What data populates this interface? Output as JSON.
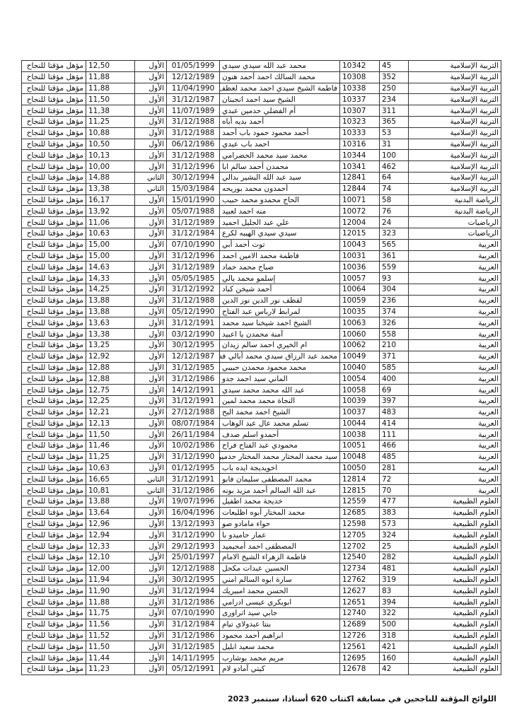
{
  "footer": "اللوائح المؤقتة للناجحين في مسابقة اكتتاب 620 أستاذا، سبتمبر 2023",
  "rows": [
    [
      "التربية الإسلامية",
      "45",
      "10342",
      "محمد عبد الله سيدي سيدي",
      "01/05/1999",
      "الأول",
      "12,50",
      "مؤهل مؤقتا للنجاح"
    ],
    [
      "التربية الإسلامية",
      "352",
      "10308",
      "محمد السالك احمد أحمد هنون",
      "12/12/1989",
      "الأول",
      "11,88",
      "مؤهل مؤقتا للنجاح"
    ],
    [
      "التربية الإسلامية",
      "250",
      "10338",
      "فاطمة الشيخ سيدي احمد محمد لغظف",
      "11/04/1990",
      "الأول",
      "11,88",
      "مؤهل مؤقتا للنجاح"
    ],
    [
      "التربية الإسلامية",
      "234",
      "10337",
      "الشيخ سيد احمد انجبنان",
      "31/12/1987",
      "الأول",
      "11,50",
      "مؤهل مؤقتا للنجاح"
    ],
    [
      "التربية الإسلامية",
      "311",
      "10307",
      "أم الفضلي حدمين عبدي",
      "11/07/1989",
      "الأول",
      "11,38",
      "مؤهل مؤقتا للنجاح"
    ],
    [
      "التربية الإسلامية",
      "365",
      "10323",
      "أحمد بديه أباه",
      "31/12/1988",
      "الأول",
      "11,25",
      "مؤهل مؤقتا للنجاح"
    ],
    [
      "التربية الإسلامية",
      "53",
      "10333",
      "أحمد محمود حمود باب أحمد",
      "31/12/1988",
      "الأول",
      "10,88",
      "مؤهل مؤقتا للنجاح"
    ],
    [
      "التربية الإسلامية",
      "31",
      "10316",
      "احمد باب عبدي",
      "06/12/1986",
      "الأول",
      "10,50",
      "مؤهل مؤقتا للنجاح"
    ],
    [
      "التربية الإسلامية",
      "100",
      "10344",
      "محمد سيد محمد الحضرامي",
      "31/12/1988",
      "الأول",
      "10,13",
      "مؤهل مؤقتا للنجاح"
    ],
    [
      "التربية الإسلامية",
      "462",
      "10341",
      "محمدن أحمد سالم ابا",
      "31/12/1996",
      "الأول",
      "10,00",
      "مؤهل مؤقتا للنجاح"
    ],
    [
      "التربية الإسلامية",
      "64",
      "12841",
      "سيد عبد الله البشير بدالي",
      "30/12/1994",
      "الثاني",
      "14,88",
      "مؤهل مؤقتا للنجاح"
    ],
    [
      "التربية الإسلامية",
      "74",
      "12844",
      "أحمدون محمد بوريحه",
      "15/03/1984",
      "الثاني",
      "13,38",
      "مؤهل مؤقتا للنجاح"
    ],
    [
      "الرياضة البدنية",
      "58",
      "10071",
      "الحاج محمدو محمد حبيب",
      "15/01/1990",
      "الأول",
      "16,17",
      "مؤهل مؤقتا للنجاح"
    ],
    [
      "الرياضة البدنية",
      "76",
      "10072",
      "منه احمد لعبيد",
      "05/07/1988",
      "الأول",
      "13,92",
      "مؤهل مؤقتا للنجاح"
    ],
    [
      "الرياضيات",
      "24",
      "12004",
      "علي عبد الجليل احميد",
      "31/12/1989",
      "الأول",
      "11,06",
      "مؤهل مؤقتا للنجاح"
    ],
    [
      "الرياضيات",
      "323",
      "12015",
      "سيدي سيدي الهيبه لكرع",
      "31/12/1984",
      "الأول",
      "10,63",
      "مؤهل مؤقتا للنجاح"
    ],
    [
      "العربية",
      "565",
      "10043",
      "توت أحمد أبي",
      "07/10/1990",
      "الأول",
      "15,00",
      "مؤهل مؤقتا للنجاح"
    ],
    [
      "العربية",
      "361",
      "10031",
      "فاطمة محمد الامين احمد",
      "31/12/1996",
      "الأول",
      "15,00",
      "مؤهل مؤقتا للنجاح"
    ],
    [
      "العربية",
      "559",
      "10036",
      "صباح محمد حماد",
      "31/12/1989",
      "الأول",
      "14,63",
      "مؤهل مؤقتا للنجاح"
    ],
    [
      "العربية",
      "93",
      "10057",
      "إسلمو محمد يالي",
      "05/05/1985",
      "الأول",
      "14,33",
      "مؤهل مؤقتا للنجاح"
    ],
    [
      "العربية",
      "304",
      "10064",
      "أحمد شيخن كباد",
      "31/12/1992",
      "الأول",
      "14,25",
      "مؤهل مؤقتا للنجاح"
    ],
    [
      "العربية",
      "236",
      "10059",
      "لقظف نور الدين نور الدين",
      "31/12/1988",
      "الأول",
      "13,88",
      "مؤهل مؤقتا للنجاح"
    ],
    [
      "العربية",
      "374",
      "10035",
      "لمرابط لارباس عبد الفتاح",
      "05/12/1990",
      "الأول",
      "13,88",
      "مؤهل مؤقتا للنجاح"
    ],
    [
      "العربية",
      "326",
      "10063",
      "الشيخ احمد شيخنا سيد محمد",
      "31/12/1991",
      "الأول",
      "13,63",
      "مؤهل مؤقتا للنجاح"
    ],
    [
      "العربية",
      "558",
      "10060",
      "آمنة محمدن يا اعبيد",
      "03/12/1990",
      "الأول",
      "13,38",
      "مؤهل مؤقتا للنجاح"
    ],
    [
      "العربية",
      "210",
      "10062",
      "ام الخيري احمد سالم زيدان",
      "30/12/1995",
      "الأول",
      "13,25",
      "مؤهل مؤقتا للنجاح"
    ],
    [
      "العربية",
      "371",
      "10049",
      "محمد عبد الرزاق سيدي محمد  أبالي فضيلي",
      "12/12/1987",
      "الأول",
      "12,92",
      "مؤهل مؤقتا للنجاح"
    ],
    [
      "العربية",
      "585",
      "10040",
      "محمد محمود محمدن حبيبي",
      "31/12/1985",
      "الأول",
      "12,88",
      "مؤهل مؤقتا للنجاح"
    ],
    [
      "العربية",
      "400",
      "10054",
      "الماني سيد احمد جدو",
      "31/12/1986",
      "الأول",
      "12,88",
      "مؤهل مؤقتا للنجاح"
    ],
    [
      "العربية",
      "69",
      "10058",
      "عبد الله محمد محمد سيدي",
      "14/12/1991",
      "الأول",
      "12,75",
      "مؤهل مؤقتا للنجاح"
    ],
    [
      "العربية",
      "397",
      "10039",
      "النجاة محمد محمد لمين",
      "31/12/1991",
      "الأول",
      "12,25",
      "مؤهل مؤقتا للنجاح"
    ],
    [
      "العربية",
      "483",
      "10037",
      "الشيخ احمد محمد البح",
      "27/12/1988",
      "الأول",
      "12,21",
      "مؤهل مؤقتا للنجاح"
    ],
    [
      "العربية",
      "414",
      "10044",
      "تسلم محمد عال عبد الوهاب",
      "08/07/1984",
      "الأول",
      "12,13",
      "مؤهل مؤقتا للنجاح"
    ],
    [
      "العربية",
      "111",
      "10038",
      "أحمدو اسلم صدف",
      "26/11/1984",
      "الأول",
      "11,50",
      "مؤهل مؤقتا للنجاح"
    ],
    [
      "العربية",
      "466",
      "10051",
      "محمودي عبد الفتاح فراح",
      "10/02/1986",
      "الأول",
      "11,46",
      "مؤهل مؤقتا للنجاح"
    ],
    [
      "العربية",
      "485",
      "10048",
      "سيد محمد المختار محمد المختار حدمين",
      "31/12/1990",
      "الأول",
      "11,25",
      "مؤهل مؤقتا للنجاح"
    ],
    [
      "العربية",
      "281",
      "10050",
      "اخويديجة ايده باب",
      "01/12/1995",
      "الأول",
      "10,63",
      "مؤهل مؤقتا للنجاح"
    ],
    [
      "العربية",
      "72",
      "12814",
      "محمد المصطفى سليمان فابو",
      "31/12/1991",
      "الثاني",
      "16,65",
      "مؤهل مؤقتا للنجاح"
    ],
    [
      "العربية",
      "70",
      "12815",
      "عبد الله السالم أحمد مزيد بونه",
      "31/12/1986",
      "الثاني",
      "10,81",
      "مؤهل مؤقتا للنجاح"
    ],
    [
      "العلوم الطبيعية",
      "477",
      "12559",
      "خديجة محمد اطفيل",
      "19/07/1996",
      "الأول",
      "13,88",
      "مؤهل مؤقتا للنجاح"
    ],
    [
      "العلوم الطبيعية",
      "383",
      "12685",
      "محمد المختار أبوه اظليعات",
      "16/04/1996",
      "الأول",
      "13,64",
      "مؤهل مؤقتا للنجاح"
    ],
    [
      "العلوم الطبيعية",
      "573",
      "12598",
      "حواء مامادو صو",
      "13/12/1993",
      "الأول",
      "12,96",
      "مؤهل مؤقتا للنجاح"
    ],
    [
      "العلوم الطبيعية",
      "324",
      "12705",
      "عمار حاميدو با",
      "31/12/1990",
      "الأول",
      "12,94",
      "مؤهل مؤقتا للنجاح"
    ],
    [
      "العلوم الطبيعية",
      "25",
      "12702",
      "المصطفى احمد أمحيميد",
      "29/12/1993",
      "الأول",
      "12,33",
      "مؤهل مؤقتا للنجاح"
    ],
    [
      "العلوم الطبيعية",
      "282",
      "12540",
      "فاطمة الزهراء الشيخ الامام",
      "25/01/1997",
      "الأول",
      "12,10",
      "مؤهل مؤقتا للنجاح"
    ],
    [
      "العلوم الطبيعية",
      "481",
      "12734",
      "الحسين عبدات مكحل",
      "12/12/1988",
      "الأول",
      "12,00",
      "مؤهل مؤقتا للنجاح"
    ],
    [
      "العلوم الطبيعية",
      "319",
      "12762",
      "سارة ابوه السالم امني",
      "30/12/1995",
      "الأول",
      "11,94",
      "مؤهل مؤقتا للنجاح"
    ],
    [
      "العلوم الطبيعية",
      "83",
      "12627",
      "الحسن محمد امبيريك",
      "31/12/1994",
      "الأول",
      "11,90",
      "مؤهل مؤقتا للنجاح"
    ],
    [
      "العلوم الطبيعية",
      "394",
      "12651",
      "ابوبكري عيسى ادرامي",
      "31/12/1986",
      "الأول",
      "11,88",
      "مؤهل مؤقتا للنجاح"
    ],
    [
      "العلوم الطبيعية",
      "322",
      "12740",
      "جابي سيد  اتراورى",
      "07/10/1990",
      "الأول",
      "11,75",
      "مؤهل مؤقتا للنجاح"
    ],
    [
      "العلوم الطبيعية",
      "500",
      "12689",
      "بنتا عبدولاي تيام",
      "31/12/1984",
      "الأول",
      "11,56",
      "مؤهل مؤقتا للنجاح"
    ],
    [
      "العلوم الطبيعية",
      "318",
      "12726",
      "ابراهيم أحمد محمود",
      "31/12/1986",
      "الأول",
      "11,52",
      "مؤهل مؤقتا للنجاح"
    ],
    [
      "العلوم الطبيعية",
      "421",
      "12561",
      "محمد سعيد ابليل",
      "31/12/1985",
      "الأول",
      "11,50",
      "مؤهل مؤقتا للنجاح"
    ],
    [
      "العلوم الطبيعية",
      "160",
      "12695",
      "مريم محمد بوشارب",
      "14/11/1995",
      "الأول",
      "11,44",
      "مؤهل مؤقتا للنجاح"
    ],
    [
      "العلوم الطبيعية",
      "42",
      "12678",
      "كيتي آمادو لام",
      "05/12/1991",
      "الأول",
      "11,23",
      "مؤهل مؤقتا للنجاح"
    ]
  ]
}
